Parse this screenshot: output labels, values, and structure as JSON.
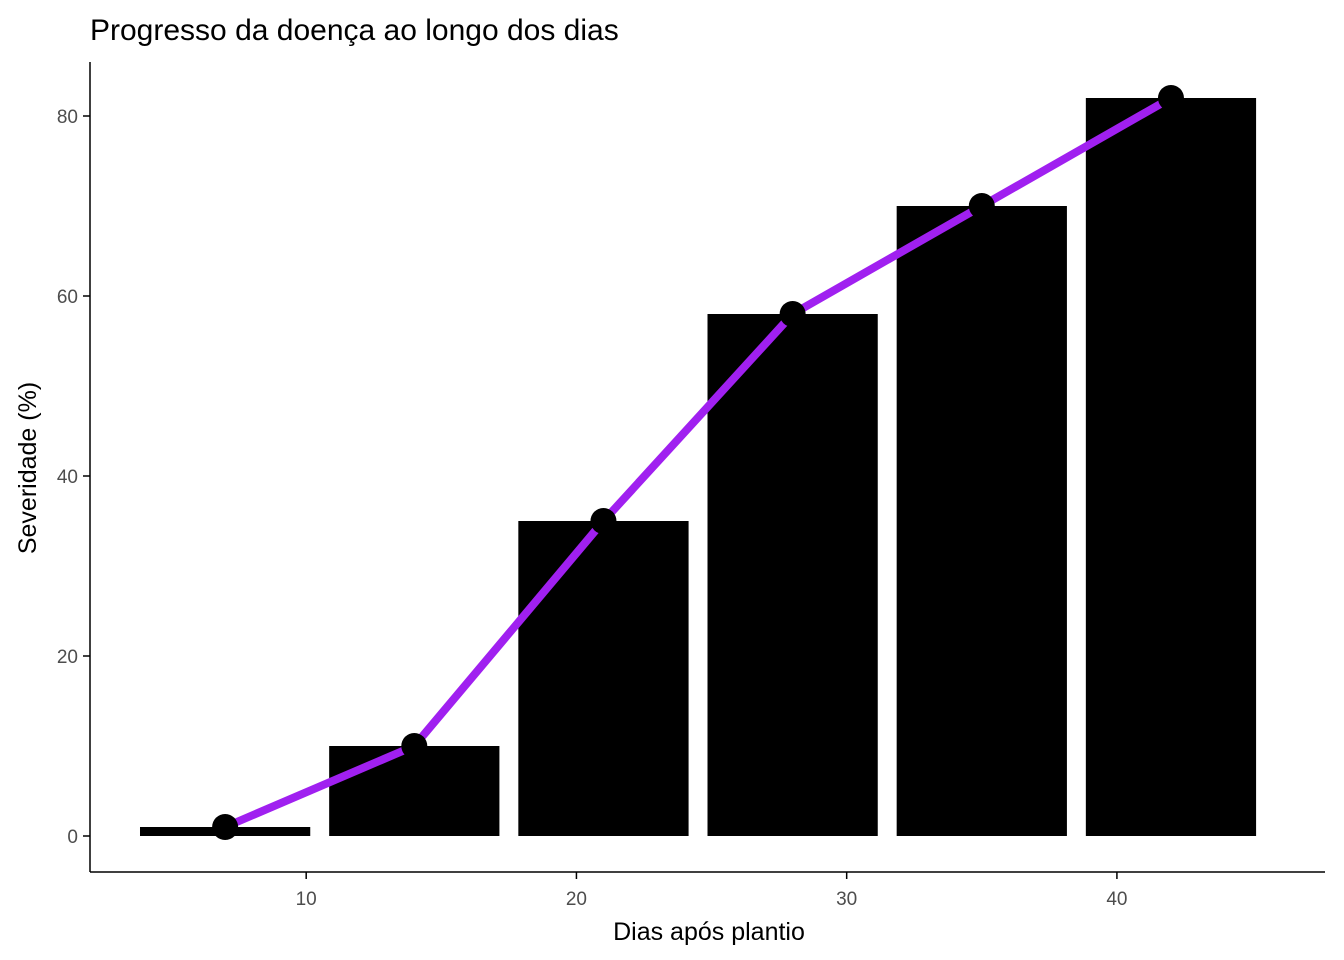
{
  "chart_data": {
    "type": "bar",
    "title": "Progresso da doença ao longo dos dias",
    "xlabel": "Dias após plantio",
    "ylabel": "Severidade (%)",
    "x": [
      7,
      14,
      21,
      28,
      35,
      42
    ],
    "values": [
      1,
      10,
      35,
      58,
      70,
      82
    ],
    "bar_width_days": 6.3,
    "overlay": {
      "type": "line",
      "x": [
        7,
        14,
        21,
        28,
        35,
        42
      ],
      "values": [
        1,
        10,
        35,
        58,
        70,
        82
      ],
      "points": true
    },
    "xlim": [
      2,
      47.7
    ],
    "ylim": [
      -4,
      86
    ],
    "xticks": [
      10,
      20,
      30,
      40
    ],
    "yticks": [
      0,
      20,
      40,
      60,
      80
    ],
    "grid": false,
    "legend": "none",
    "colors": {
      "bar": "#000000",
      "line": "#a020f0",
      "point": "#000000",
      "axis": "#000000",
      "tick_label": "#4d4d4d"
    }
  }
}
